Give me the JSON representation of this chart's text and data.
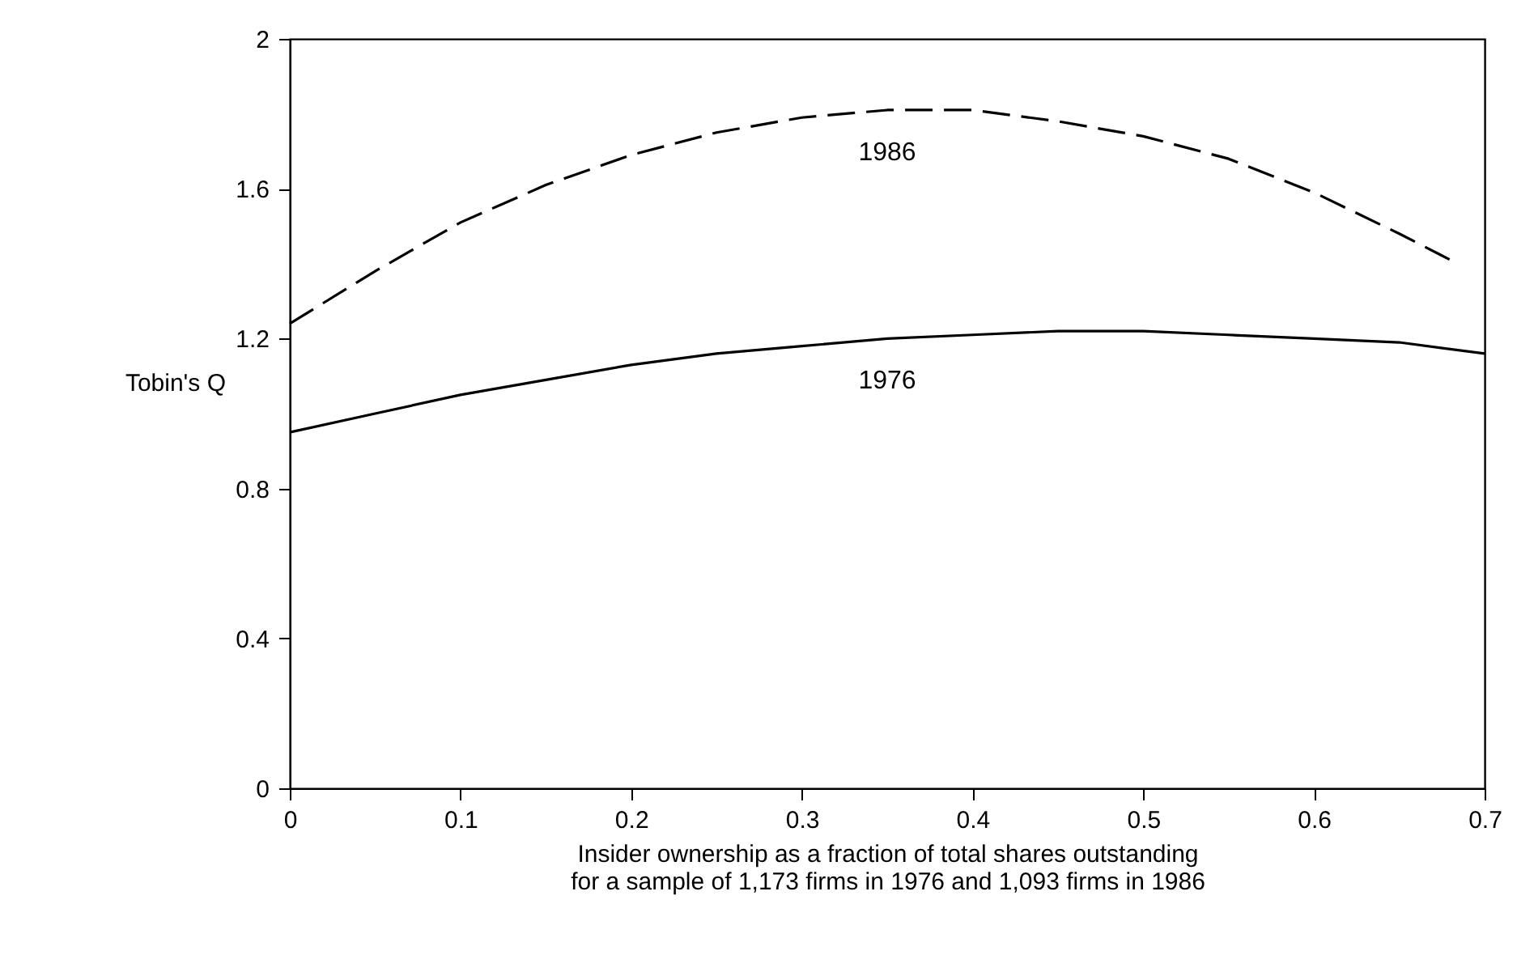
{
  "chart_data": {
    "type": "line",
    "xlabel": "Insider ownership as a fraction of total shares outstanding for a sample of 1,173 firms in 1976 and 1,093 firms in 1986",
    "ylabel": "Tobin's Q",
    "series": [
      {
        "name": "1986",
        "color": "#000000",
        "line_style": "dashed",
        "x": [
          0,
          0.05,
          0.1,
          0.15,
          0.2,
          0.25,
          0.3,
          0.35,
          0.4,
          0.45,
          0.5,
          0.55,
          0.6,
          0.65,
          0.68
        ],
        "values": [
          1.24,
          1.38,
          1.51,
          1.61,
          1.69,
          1.75,
          1.79,
          1.81,
          1.81,
          1.78,
          1.74,
          1.68,
          1.59,
          1.48,
          1.41
        ]
      },
      {
        "name": "1976",
        "color": "#000000",
        "line_style": "solid",
        "x": [
          0,
          0.05,
          0.1,
          0.15,
          0.2,
          0.25,
          0.3,
          0.35,
          0.4,
          0.45,
          0.5,
          0.55,
          0.6,
          0.65,
          0.7
        ],
        "values": [
          0.95,
          1.0,
          1.05,
          1.09,
          1.13,
          1.16,
          1.18,
          1.2,
          1.21,
          1.22,
          1.22,
          1.21,
          1.2,
          1.19,
          1.16
        ]
      }
    ],
    "xlim": [
      0,
      0.7
    ],
    "xticks": [
      0,
      0.1,
      0.2,
      0.3,
      0.4,
      0.5,
      0.6,
      0.7
    ],
    "ylim": [
      0,
      2
    ],
    "yticks": [
      0,
      0.4,
      0.8,
      1.2,
      1.6,
      2
    ],
    "grid": false
  }
}
